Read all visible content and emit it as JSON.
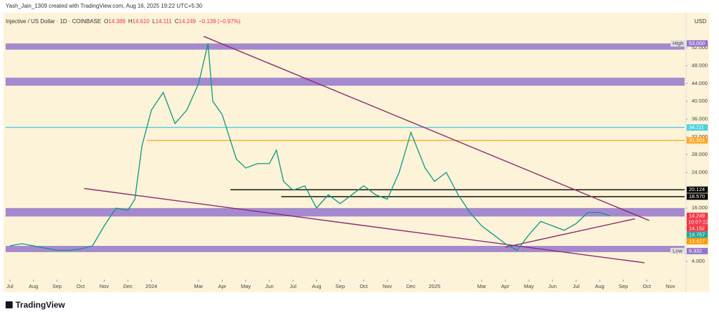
{
  "header": {
    "author": "Yash_Jain_1309 created with TradingView.com, Aug 16, 2025 19:22 UTC+5:30",
    "symbol": "Injective / US Dollar · 1D · COINBASE",
    "ohlc": [
      {
        "label": "O",
        "value": 14.389
      },
      {
        "label": "H",
        "value": 14.61,
        "value_label": "14.610"
      },
      {
        "label": "L",
        "value": 14.111
      },
      {
        "label": "C",
        "value": 14.249
      }
    ],
    "change": "−0.139 (−0.97%)",
    "currency": "USD"
  },
  "footer": {
    "brand": "TradingView"
  },
  "chart_data": {
    "type": "line",
    "color": "#089981",
    "x": [
      0,
      0.5,
      1,
      1.5,
      2,
      2.5,
      3,
      3.5,
      4,
      4.5,
      5,
      5.3,
      5.6,
      6,
      6.5,
      7,
      7.5,
      8,
      8.4,
      8.6,
      9,
      9.3,
      9.6,
      10,
      10.5,
      11,
      11.3,
      11.6,
      12,
      12.5,
      13,
      13.5,
      14,
      14.5,
      15,
      15.5,
      16,
      16.5,
      17,
      17.3,
      17.6,
      18,
      18.5,
      19,
      19.5,
      20,
      20.5,
      21,
      21.5,
      22,
      22.5,
      23,
      23.5,
      24,
      24.5,
      25,
      25.45
    ],
    "values": [
      7.5,
      8,
      7.5,
      7,
      6.5,
      6.5,
      6.8,
      7.5,
      12,
      16,
      15.5,
      18,
      30,
      38,
      42,
      35,
      38,
      44,
      53,
      40,
      37,
      32,
      27,
      25,
      26,
      26,
      29,
      22,
      20,
      21,
      16,
      19,
      17,
      19,
      21,
      19,
      18,
      24,
      33,
      29,
      25,
      22,
      24,
      19,
      15,
      12,
      10,
      8,
      6.5,
      10,
      13,
      12,
      11,
      12.5,
      15,
      15,
      14.249
    ],
    "xlim": [
      -0.18,
      28.6
    ],
    "xticks": [
      {
        "value": 0,
        "label": "Jul"
      },
      {
        "value": 1,
        "label": "Aug"
      },
      {
        "value": 2,
        "label": "Sep"
      },
      {
        "value": 3,
        "label": "Oct"
      },
      {
        "value": 4,
        "label": "Nov"
      },
      {
        "value": 5,
        "label": "Dec"
      },
      {
        "value": 6,
        "label": "2024"
      },
      {
        "value": 8,
        "label": "Mar"
      },
      {
        "value": 9,
        "label": "Apr"
      },
      {
        "value": 10,
        "label": "May"
      },
      {
        "value": 11,
        "label": "Jun"
      },
      {
        "value": 12,
        "label": "Jul"
      },
      {
        "value": 13,
        "label": "Aug"
      },
      {
        "value": 14,
        "label": "Sep"
      },
      {
        "value": 15,
        "label": "Oct"
      },
      {
        "value": 16,
        "label": "Nov"
      },
      {
        "value": 17,
        "label": "Dec"
      },
      {
        "value": 18,
        "label": "2025"
      },
      {
        "value": 20,
        "label": "Mar"
      },
      {
        "value": 21,
        "label": "Apr"
      },
      {
        "value": 22,
        "label": "May"
      },
      {
        "value": 23,
        "label": "Jun"
      },
      {
        "value": 24,
        "label": "Jul"
      },
      {
        "value": 25,
        "label": "Aug"
      },
      {
        "value": 26,
        "label": "Sep"
      },
      {
        "value": 27,
        "label": "Oct"
      },
      {
        "value": 28,
        "label": "Nov"
      }
    ],
    "ylim": [
      0.4,
      59.6
    ],
    "yticks": [
      {
        "value": 4,
        "label": "4.000"
      },
      {
        "value": 16,
        "label": "16.000"
      },
      {
        "value": 24,
        "label": "24.000"
      },
      {
        "value": 28,
        "label": "28.000"
      },
      {
        "value": 32,
        "label": "32.000"
      },
      {
        "value": 36,
        "label": "36.000"
      },
      {
        "value": 40,
        "label": "40.000"
      },
      {
        "value": 44,
        "label": "44.000"
      },
      {
        "value": 48,
        "label": "48.000"
      },
      {
        "value": 52,
        "label": "52.000"
      }
    ],
    "zones": [
      {
        "lo": 51.6,
        "hi": 53,
        "color": "#9575cd"
      },
      {
        "lo": 43.5,
        "hi": 45.3,
        "color": "#9575cd"
      },
      {
        "lo": 14.1,
        "hi": 16,
        "color": "#9575cd"
      },
      {
        "lo": 6.1,
        "hi": 7.5,
        "color": "#9575cd"
      }
    ],
    "hlines": [
      {
        "value": 34.111,
        "start": -0.18,
        "color": "#4dd0e1"
      },
      {
        "value": 31.201,
        "start": 5.8,
        "color": "#ffa726"
      },
      {
        "value": 20.124,
        "start": 9.35,
        "color": "#000000"
      },
      {
        "value": 18.57,
        "start": 11.5,
        "color": "#000000"
      }
    ],
    "trendlines": [
      {
        "x": [
          8.21,
          27.1
        ],
        "y": [
          54.6,
          13.2
        ],
        "color": "#8e2a6e"
      },
      {
        "x": [
          3.15,
          26.9
        ],
        "y": [
          20.4,
          3.7
        ],
        "color": "#8e2a6e"
      },
      {
        "x": [
          21,
          26.5
        ],
        "y": [
          7.2,
          13.6
        ],
        "color": "#8e2a6e"
      }
    ],
    "price_tags": [
      {
        "value": 53,
        "label": "53.000",
        "color": "#9575cd",
        "name": "High"
      },
      {
        "value": 34.111,
        "label": "34.111",
        "color": "#4dd0e1"
      },
      {
        "value": 31.201,
        "label": "31.201",
        "color": "#ffa726"
      },
      {
        "value": 20.124,
        "label": "20.124",
        "color": "#000000"
      },
      {
        "value": 18.57,
        "label": "18.570",
        "color": "#000000"
      },
      {
        "value": 14.249,
        "label": "14.249",
        "color": "#f23645"
      },
      {
        "value": 14.152,
        "label": "14.152",
        "color": "#f23645"
      },
      {
        "value": 13.757,
        "label": "13.757",
        "color": "#26a69a"
      },
      {
        "value": 13.427,
        "label": "13.427",
        "color": "#ff9800"
      },
      {
        "value": 6.332,
        "label": "6.332",
        "color": "#9575cd",
        "name": "Low"
      }
    ],
    "countdown": "10:07:22"
  }
}
